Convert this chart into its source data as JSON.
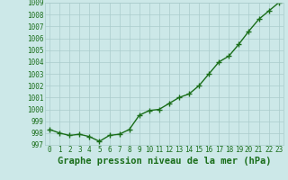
{
  "x": [
    0,
    1,
    2,
    3,
    4,
    5,
    6,
    7,
    8,
    9,
    10,
    11,
    12,
    13,
    14,
    15,
    16,
    17,
    18,
    19,
    20,
    21,
    22,
    23
  ],
  "y": [
    998.3,
    998.0,
    997.8,
    997.9,
    997.7,
    997.3,
    997.8,
    997.9,
    998.3,
    999.5,
    999.9,
    1000.0,
    1000.5,
    1001.0,
    1001.3,
    1002.0,
    1003.0,
    1004.0,
    1004.5,
    1005.5,
    1006.6,
    1007.6,
    1008.3,
    1009.0
  ],
  "ylim": [
    997,
    1009
  ],
  "yticks": [
    997,
    998,
    999,
    1000,
    1001,
    1002,
    1003,
    1004,
    1005,
    1006,
    1007,
    1008,
    1009
  ],
  "xticks": [
    0,
    1,
    2,
    3,
    4,
    5,
    6,
    7,
    8,
    9,
    10,
    11,
    12,
    13,
    14,
    15,
    16,
    17,
    18,
    19,
    20,
    21,
    22,
    23
  ],
  "line_color": "#1a6e1a",
  "marker": "+",
  "marker_size": 4,
  "marker_edge_width": 1.0,
  "line_width": 1.0,
  "bg_color": "#cce8e8",
  "grid_color": "#aacccc",
  "xlabel": "Graphe pression niveau de la mer (hPa)",
  "xlabel_fontsize": 7.5,
  "tick_fontsize": 5.5,
  "xlabel_color": "#1a6e1a",
  "tick_color": "#1a6e1a"
}
